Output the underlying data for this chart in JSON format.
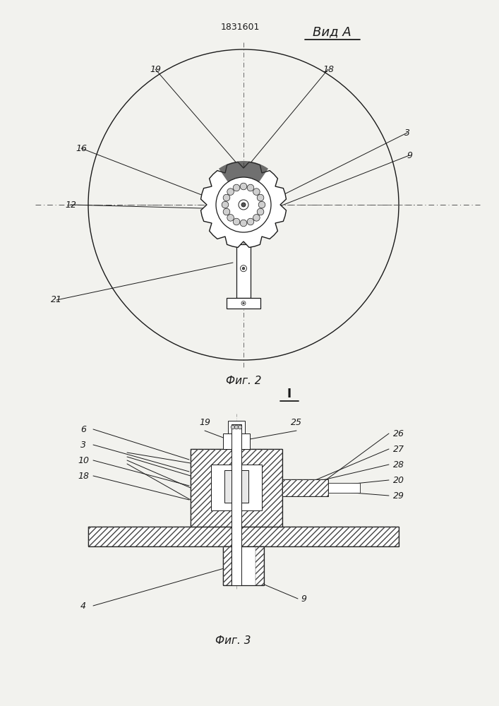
{
  "bg_color": "#f2f2ee",
  "line_color": "#1a1a1a",
  "patent_number": "1831601",
  "view_label": "Вид А",
  "fig2_label": "Фиг. 2",
  "fig3_label": "Фиг. 3",
  "section_label": "I"
}
